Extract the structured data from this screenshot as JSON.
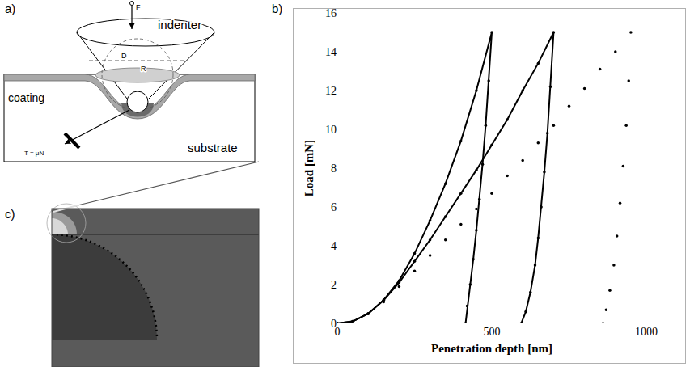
{
  "chart_data": {
    "type": "scatter",
    "x_label": "Penetration depth [nm]",
    "y_label": "Load [mN]",
    "xlim": [
      0,
      1000
    ],
    "xticks": [
      0,
      500,
      1000
    ],
    "ylim": [
      0,
      16
    ],
    "yticks": [
      0,
      2,
      4,
      6,
      8,
      10,
      12,
      14,
      16
    ],
    "grid": false,
    "series": [
      {
        "color": "#000000",
        "marker": "circle",
        "line_style": "solid",
        "x": [
          0,
          50,
          100,
          150,
          200,
          250,
          300,
          350,
          400,
          450,
          500,
          490,
          480,
          470,
          460,
          450,
          440,
          430,
          420,
          415
        ],
        "values": [
          0,
          0.1,
          0.5,
          1.2,
          2.2,
          3.6,
          5.3,
          7.2,
          9.4,
          12.0,
          15,
          12.5,
          10.2,
          8.2,
          6.4,
          4.8,
          3.3,
          2.0,
          0.9,
          0
        ]
      },
      {
        "color": "#000000",
        "marker": "circle",
        "line_style": "solid",
        "x": [
          0,
          50,
          100,
          150,
          200,
          250,
          300,
          350,
          400,
          450,
          500,
          550,
          600,
          650,
          700,
          690,
          680,
          670,
          660,
          650,
          640,
          625,
          610,
          595
        ],
        "values": [
          0,
          0.1,
          0.5,
          1.2,
          2.1,
          3.2,
          4.3,
          5.5,
          6.7,
          7.9,
          9.2,
          10.5,
          12.0,
          13.4,
          15,
          12.2,
          9.8,
          7.8,
          6.0,
          4.4,
          3.0,
          1.6,
          0.6,
          0
        ]
      },
      {
        "color": "#000000",
        "marker": "circle",
        "line_style": "none",
        "x": [
          0,
          50,
          100,
          150,
          200,
          250,
          300,
          350,
          400,
          450,
          500,
          550,
          600,
          650,
          700,
          750,
          800,
          850,
          900,
          950,
          943,
          935,
          925,
          915,
          905,
          895,
          882,
          870,
          860
        ],
        "values": [
          0,
          0.1,
          0.5,
          1.1,
          1.9,
          2.7,
          3.5,
          4.3,
          5.1,
          5.9,
          6.7,
          7.6,
          8.4,
          9.3,
          10.2,
          11.2,
          12.1,
          13.1,
          14.0,
          15,
          12.5,
          10.2,
          8.1,
          6.2,
          4.5,
          3.0,
          1.7,
          0.7,
          0
        ]
      }
    ]
  },
  "figure": {
    "panel_letters": {
      "a": "a)",
      "b": "b)",
      "c": "c)"
    },
    "diagram_labels": {
      "indenter": "indenter",
      "coating": "coating",
      "substrate": "substrate",
      "force": "F",
      "diameter": "D",
      "radius": "R",
      "friction": "T = μN"
    }
  }
}
